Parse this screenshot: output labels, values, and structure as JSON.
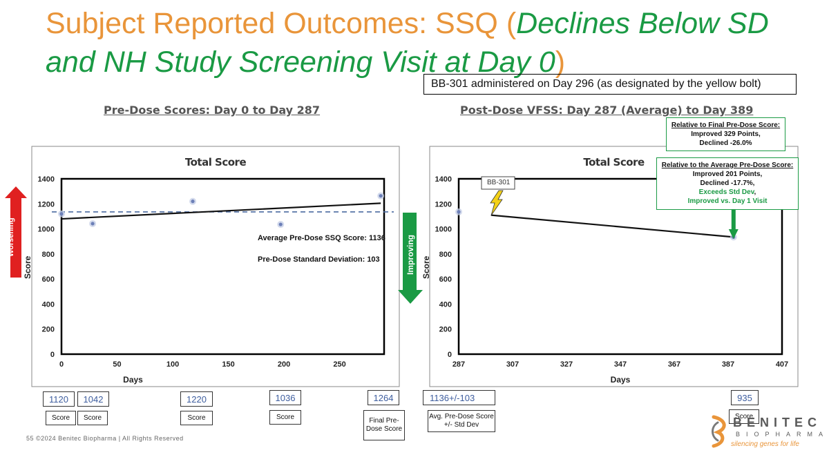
{
  "slide": {
    "title_part1": "Subject Reported Outcomes: SSQ (",
    "title_part2": "Declines Below SD and NH Study Screening Visit at Day 0",
    "title_part3": ")",
    "admin_note": "BB-301 administered on Day 296 (as designated by the yellow bolt)",
    "pre_subtitle": "Pre-Dose Scores: Day 0 to Day 287",
    "post_subtitle": "Post-Dose VFSS: Day 287 (Average) to Day 389",
    "footer": "55   ©2024 Benitec Biopharma | All Rights Reserved",
    "colors": {
      "orange": "#e9953a",
      "green": "#1a9a44",
      "red": "#e02020",
      "point": "#7f93c4"
    }
  },
  "arrows": {
    "worsening": "Worsening",
    "improving": "Improving"
  },
  "annotations": {
    "avg": "Average Pre-Dose SSQ Score: 1136",
    "sd": "Pre-Dose Standard Deviation: 103",
    "bb301": "BB-301",
    "bolt_icon": "lightning-bolt"
  },
  "callouts": {
    "final": {
      "heading": "Relative to Final Pre-Dose Score:",
      "line1": "Improved 329 Points,",
      "line2": "Declined -26.0%"
    },
    "average": {
      "heading": "Relative to the Average Pre-Dose Score:",
      "line1": "Improved 201 Points,",
      "line2": "Declined -17.7%,",
      "line3": "Exceeds Std Dev",
      "line3_suffix": ",",
      "line4": "Improved vs. Day 1 Visit"
    }
  },
  "value_boxes": {
    "v1": "1120",
    "v2": "1042",
    "v3": "1220",
    "v4": "1036",
    "v5": "1264",
    "v6": "1136+/-103",
    "v7": "935"
  },
  "label_boxes": {
    "l1": "Score",
    "l2": "Score",
    "l3": "Score",
    "l4": "Score",
    "l5": "Final Pre-Dose Score",
    "l6": "Avg. Pre-Dose Score +/- Std Dev",
    "l7": "Score"
  },
  "logo": {
    "name": "BENITEC",
    "sub": "BIOPHARMA",
    "tagline": "silencing genes for life"
  },
  "chart_data": [
    {
      "type": "scatter",
      "title": "Total Score",
      "xlabel": "Days",
      "ylabel": "Score",
      "xlim": [
        0,
        290
      ],
      "ylim": [
        0,
        1400
      ],
      "xticks": [
        0,
        50,
        100,
        150,
        200,
        250
      ],
      "yticks": [
        0,
        200,
        400,
        600,
        800,
        1000,
        1200,
        1400
      ],
      "points": [
        {
          "x": 0,
          "y": 1120
        },
        {
          "x": 28,
          "y": 1042
        },
        {
          "x": 118,
          "y": 1220
        },
        {
          "x": 197,
          "y": 1036
        },
        {
          "x": 287,
          "y": 1264
        }
      ],
      "trendline": [
        {
          "x": 0,
          "y": 1080
        },
        {
          "x": 287,
          "y": 1205
        }
      ],
      "reference_line": {
        "y": 1136,
        "style": "dashed"
      }
    },
    {
      "type": "line",
      "title": "Total Score",
      "xlabel": "Days",
      "ylabel": "Score",
      "xlim": [
        287,
        407
      ],
      "ylim": [
        0,
        1400
      ],
      "xticks": [
        287,
        307,
        327,
        347,
        367,
        387,
        407
      ],
      "yticks": [
        0,
        200,
        400,
        600,
        800,
        1000,
        1200,
        1400
      ],
      "points": [
        {
          "x": 287,
          "y": 1136
        },
        {
          "x": 389,
          "y": 935
        }
      ],
      "line": [
        {
          "x": 299,
          "y": 1110
        },
        {
          "x": 389,
          "y": 935
        }
      ],
      "dose_day": 296
    }
  ]
}
